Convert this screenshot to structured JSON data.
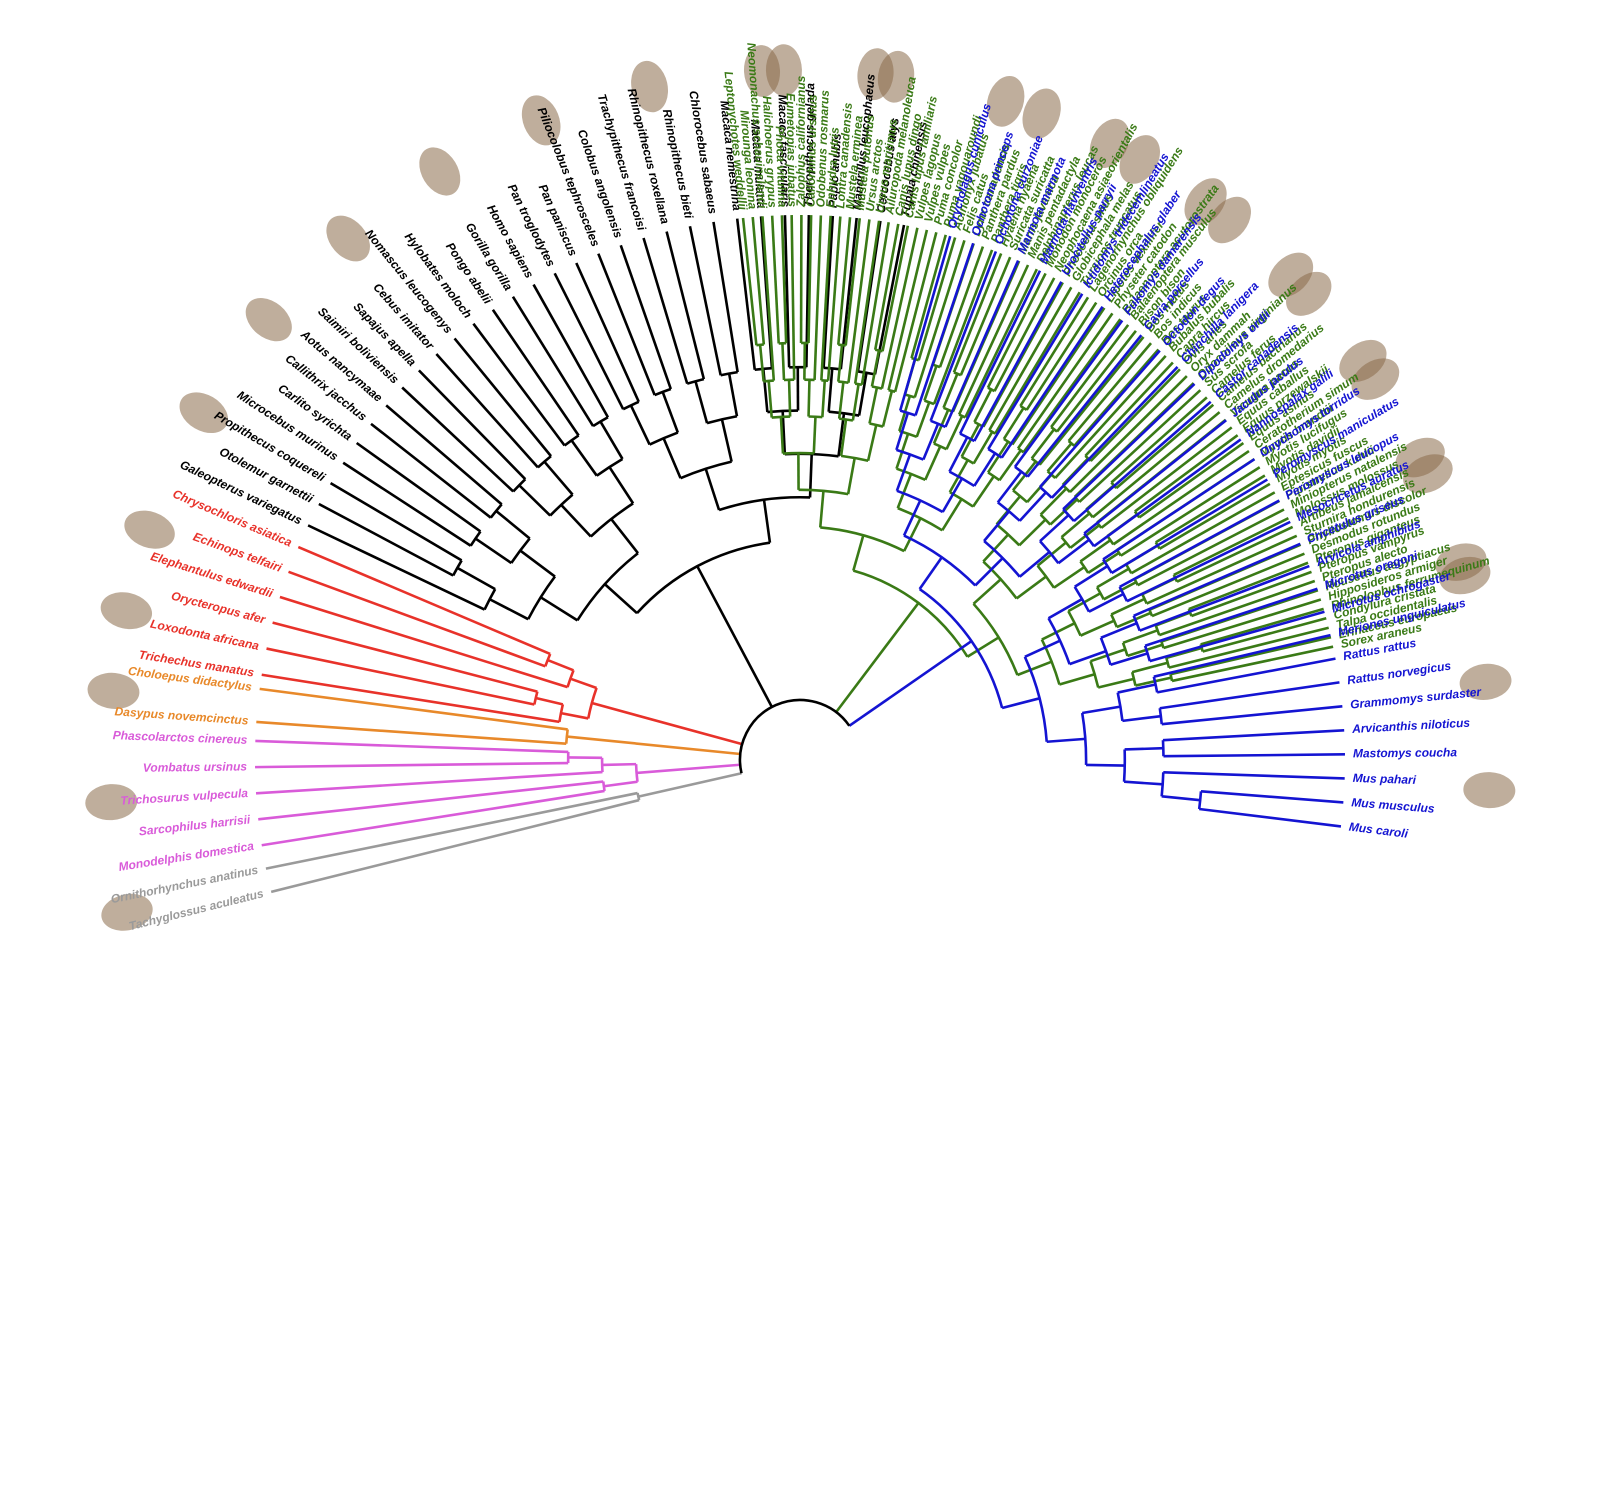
{
  "colors": {
    "Rodentia+Lagomorpha": "#1414d2",
    "Eulipotyphla+Chiroptera+Ferungulata": "#3a7a16",
    "Primates+Euarchonta": "#000000",
    "Afrotheria": "#e8322a",
    "Xenarthra": "#e8892a",
    "Marsupialia": "#d95bd9",
    "Monotremata": "#9a9a9a"
  },
  "clades": {
    "Primates+Euarchonta": {
      "icon": "primate-silhouettes-icon",
      "species": [
        "Tupaia chinensis",
        "Cercocebus atys",
        "Mandrillus leucophaeus",
        "Papio anubis",
        "Theropithecus gelada",
        "Macaca fascicularis",
        "Macaca mulatta",
        "Macaca nemestrina",
        "Chlorocebus sabaeus",
        "Rhinopithecus bieti",
        "Rhinopithecus roxellana",
        "Trachypithecus francoisi",
        "Colobus angolensis",
        "Piliocolobus tephrosceles",
        "Pan paniscus",
        "Pan troglodytes",
        "Homo sapiens",
        "Gorilla gorilla",
        "Pongo abelii",
        "Hylobates moloch",
        "Nomascus leucogenys",
        "Cebus imitator",
        "Sapajus apella",
        "Saimiri boliviensis",
        "Aotus nancymaae",
        "Callithrix jacchus",
        "Carlito syrichta",
        "Microcebus murinus",
        "Propithecus coquereli",
        "Otolemur garnettii",
        "Galeopterus variegatus"
      ]
    },
    "Afrotheria": {
      "icon": "afrotheria-silhouettes-icon",
      "species": [
        "Chrysochloris asiatica",
        "Echinops telfairi",
        "Elephantulus edwardii",
        "Orycteropus afer",
        "Loxodonta africana",
        "Trichechus manatus"
      ]
    },
    "Xenarthra": {
      "icon": "xenarthra-silhouettes-icon",
      "species": [
        "Choloepus didactylus",
        "Dasypus novemcinctus"
      ]
    },
    "Marsupialia": {
      "icon": "marsupial-silhouettes-icon",
      "species": [
        "Phascolarctos cinereus",
        "Vombatus ursinus",
        "Trichosurus vulpecula",
        "Sarcophilus harrisii",
        "Monodelphis domestica"
      ]
    },
    "Monotremata": {
      "icon": "monotreme-silhouettes-icon",
      "species": [
        "Ornithorhynchus anatinus",
        "Tachyglossus aculeatus"
      ]
    },
    "Eulipotyphla+Chiroptera+Ferungulata": {
      "icon": "laurasiatheria-silhouettes-icon",
      "species": [
        "Leptonychotes weddellii",
        "Mirounga leonina",
        "Neomonachus schauinslandi",
        "Halichoerus grypus",
        "Phoca vitulina",
        "Eumetopias jubatus",
        "Zalophus californianus",
        "Callorhinus ursinus",
        "Odobenus rosmarus",
        "Enhydra lutris",
        "Lontra canadensis",
        "Mustela erminea",
        "Mustela putorius",
        "Ursus arctos",
        "Ursus maritimus",
        "Ailuropoda melanoleuca",
        "Canis lupus dingo",
        "Canis lupus familiaris",
        "Vulpes lagopus",
        "Vulpes vulpes",
        "Puma concolor",
        "Puma yagouaroundi",
        "Acinonyx jubatus",
        "Felis catus",
        "Lynx canadensis",
        "Panthera pardus",
        "Panthera tigris",
        "Hyaena hyaena",
        "Suricata suricatta",
        "Manis javanica",
        "Manis pentadactyla",
        "Delphinapterus leucas",
        "Monodon monoceros",
        "Neophocaena asiaeorientalis",
        "Phocoena sinus",
        "Globicephala melas",
        "Tursiops truncatus",
        "Lagenorhynchus obliquidens",
        "Orcinus orca",
        "Lipotes vexillifer",
        "Physeter catodon",
        "Balaenoptera acutorostrata",
        "Balaenoptera musculus",
        "Bison bison",
        "Bos mutus",
        "Bos indicus",
        "Bos taurus",
        "Bubalus bubalis",
        "Capra hircus",
        "Ovis aries",
        "Oryx dammah",
        "Odocoileus virginianus",
        "Sus scrofa",
        "Camelus ferus",
        "Camelus bactrianus",
        "Camelus dromedarius",
        "Vicugna pacos",
        "Equus caballus",
        "Equus przewalskii",
        "Equus asinus",
        "Ceratotherium simum",
        "Myotis brandtii",
        "Myotis lucifugus",
        "Myotis davidii",
        "Myotis myotis",
        "Eptesicus fuscus",
        "Pipistrellus kuhlii",
        "Miniopterus natalensis",
        "Molossus molossus",
        "Artibeus jamaicensis",
        "Sturnira hondurensis",
        "Phyllostomus discolor",
        "Desmodus rotundus",
        "Pteropus giganteus",
        "Pteropus vampyrus",
        "Pteropus alecto",
        "Rousettus aegyptiacus",
        "Hipposideros armiger",
        "Rhinolophus ferrumequinum",
        "Condylura cristata",
        "Talpa occidentalis",
        "Erinaceus europaeus",
        "Sorex araneus"
      ]
    },
    "Rodentia+Lagomorpha": {
      "icon": "rodent-silhouettes-icon",
      "species": [
        "Mus caroli",
        "Mus musculus",
        "Mus pahari",
        "Mastomys coucha",
        "Arvicanthis niloticus",
        "Grammomys surdaster",
        "Rattus norvegicus",
        "Rattus rattus",
        "Meriones unguiculatus",
        "Microtus ochrogaster",
        "Microtus oregoni",
        "Arvicola amphibius",
        "Cricetulus griseus",
        "Mesocricetus auratus",
        "Peromyscus leucopus",
        "Peromyscus maniculatus",
        "Onychomys torridus",
        "Nannospalax galili",
        "Jaculus jaculus",
        "Castor canadensis",
        "Dipodomys ordii",
        "Chinchilla lanigera",
        "Octodon degus",
        "Cavia porcellus",
        "Fukomys damarensis",
        "Heterocephalus glaber",
        "Ictidomys tridecemlineatus",
        "Urocitellus parryii",
        "Marmota flaviventris",
        "Marmota marmota",
        "Ochotona curzoniae",
        "Ochotona princeps",
        "Oryctolagus cuniculus"
      ]
    }
  }
}
